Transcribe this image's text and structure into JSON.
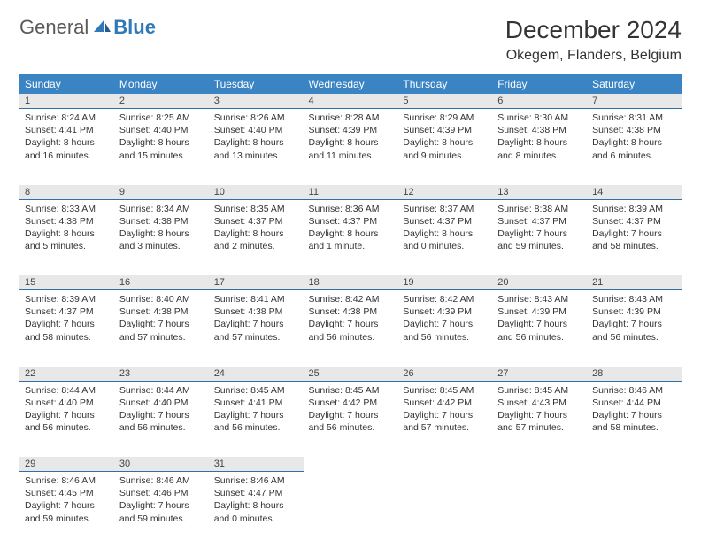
{
  "logo": {
    "general": "General",
    "blue": "Blue"
  },
  "title": "December 2024",
  "location": "Okegem, Flanders, Belgium",
  "day_headers": [
    "Sunday",
    "Monday",
    "Tuesday",
    "Wednesday",
    "Thursday",
    "Friday",
    "Saturday"
  ],
  "colors": {
    "header_bg": "#3b84c4",
    "header_text": "#ffffff",
    "daynum_bg": "#e8e8e8",
    "daynum_border": "#2f6fa8",
    "logo_gray": "#5a5a5a",
    "logo_blue": "#2f79b9"
  },
  "weeks": [
    [
      {
        "n": "1",
        "sunrise": "Sunrise: 8:24 AM",
        "sunset": "Sunset: 4:41 PM",
        "daylight": "Daylight: 8 hours and 16 minutes."
      },
      {
        "n": "2",
        "sunrise": "Sunrise: 8:25 AM",
        "sunset": "Sunset: 4:40 PM",
        "daylight": "Daylight: 8 hours and 15 minutes."
      },
      {
        "n": "3",
        "sunrise": "Sunrise: 8:26 AM",
        "sunset": "Sunset: 4:40 PM",
        "daylight": "Daylight: 8 hours and 13 minutes."
      },
      {
        "n": "4",
        "sunrise": "Sunrise: 8:28 AM",
        "sunset": "Sunset: 4:39 PM",
        "daylight": "Daylight: 8 hours and 11 minutes."
      },
      {
        "n": "5",
        "sunrise": "Sunrise: 8:29 AM",
        "sunset": "Sunset: 4:39 PM",
        "daylight": "Daylight: 8 hours and 9 minutes."
      },
      {
        "n": "6",
        "sunrise": "Sunrise: 8:30 AM",
        "sunset": "Sunset: 4:38 PM",
        "daylight": "Daylight: 8 hours and 8 minutes."
      },
      {
        "n": "7",
        "sunrise": "Sunrise: 8:31 AM",
        "sunset": "Sunset: 4:38 PM",
        "daylight": "Daylight: 8 hours and 6 minutes."
      }
    ],
    [
      {
        "n": "8",
        "sunrise": "Sunrise: 8:33 AM",
        "sunset": "Sunset: 4:38 PM",
        "daylight": "Daylight: 8 hours and 5 minutes."
      },
      {
        "n": "9",
        "sunrise": "Sunrise: 8:34 AM",
        "sunset": "Sunset: 4:38 PM",
        "daylight": "Daylight: 8 hours and 3 minutes."
      },
      {
        "n": "10",
        "sunrise": "Sunrise: 8:35 AM",
        "sunset": "Sunset: 4:37 PM",
        "daylight": "Daylight: 8 hours and 2 minutes."
      },
      {
        "n": "11",
        "sunrise": "Sunrise: 8:36 AM",
        "sunset": "Sunset: 4:37 PM",
        "daylight": "Daylight: 8 hours and 1 minute."
      },
      {
        "n": "12",
        "sunrise": "Sunrise: 8:37 AM",
        "sunset": "Sunset: 4:37 PM",
        "daylight": "Daylight: 8 hours and 0 minutes."
      },
      {
        "n": "13",
        "sunrise": "Sunrise: 8:38 AM",
        "sunset": "Sunset: 4:37 PM",
        "daylight": "Daylight: 7 hours and 59 minutes."
      },
      {
        "n": "14",
        "sunrise": "Sunrise: 8:39 AM",
        "sunset": "Sunset: 4:37 PM",
        "daylight": "Daylight: 7 hours and 58 minutes."
      }
    ],
    [
      {
        "n": "15",
        "sunrise": "Sunrise: 8:39 AM",
        "sunset": "Sunset: 4:37 PM",
        "daylight": "Daylight: 7 hours and 58 minutes."
      },
      {
        "n": "16",
        "sunrise": "Sunrise: 8:40 AM",
        "sunset": "Sunset: 4:38 PM",
        "daylight": "Daylight: 7 hours and 57 minutes."
      },
      {
        "n": "17",
        "sunrise": "Sunrise: 8:41 AM",
        "sunset": "Sunset: 4:38 PM",
        "daylight": "Daylight: 7 hours and 57 minutes."
      },
      {
        "n": "18",
        "sunrise": "Sunrise: 8:42 AM",
        "sunset": "Sunset: 4:38 PM",
        "daylight": "Daylight: 7 hours and 56 minutes."
      },
      {
        "n": "19",
        "sunrise": "Sunrise: 8:42 AM",
        "sunset": "Sunset: 4:39 PM",
        "daylight": "Daylight: 7 hours and 56 minutes."
      },
      {
        "n": "20",
        "sunrise": "Sunrise: 8:43 AM",
        "sunset": "Sunset: 4:39 PM",
        "daylight": "Daylight: 7 hours and 56 minutes."
      },
      {
        "n": "21",
        "sunrise": "Sunrise: 8:43 AM",
        "sunset": "Sunset: 4:39 PM",
        "daylight": "Daylight: 7 hours and 56 minutes."
      }
    ],
    [
      {
        "n": "22",
        "sunrise": "Sunrise: 8:44 AM",
        "sunset": "Sunset: 4:40 PM",
        "daylight": "Daylight: 7 hours and 56 minutes."
      },
      {
        "n": "23",
        "sunrise": "Sunrise: 8:44 AM",
        "sunset": "Sunset: 4:40 PM",
        "daylight": "Daylight: 7 hours and 56 minutes."
      },
      {
        "n": "24",
        "sunrise": "Sunrise: 8:45 AM",
        "sunset": "Sunset: 4:41 PM",
        "daylight": "Daylight: 7 hours and 56 minutes."
      },
      {
        "n": "25",
        "sunrise": "Sunrise: 8:45 AM",
        "sunset": "Sunset: 4:42 PM",
        "daylight": "Daylight: 7 hours and 56 minutes."
      },
      {
        "n": "26",
        "sunrise": "Sunrise: 8:45 AM",
        "sunset": "Sunset: 4:42 PM",
        "daylight": "Daylight: 7 hours and 57 minutes."
      },
      {
        "n": "27",
        "sunrise": "Sunrise: 8:45 AM",
        "sunset": "Sunset: 4:43 PM",
        "daylight": "Daylight: 7 hours and 57 minutes."
      },
      {
        "n": "28",
        "sunrise": "Sunrise: 8:46 AM",
        "sunset": "Sunset: 4:44 PM",
        "daylight": "Daylight: 7 hours and 58 minutes."
      }
    ],
    [
      {
        "n": "29",
        "sunrise": "Sunrise: 8:46 AM",
        "sunset": "Sunset: 4:45 PM",
        "daylight": "Daylight: 7 hours and 59 minutes."
      },
      {
        "n": "30",
        "sunrise": "Sunrise: 8:46 AM",
        "sunset": "Sunset: 4:46 PM",
        "daylight": "Daylight: 7 hours and 59 minutes."
      },
      {
        "n": "31",
        "sunrise": "Sunrise: 8:46 AM",
        "sunset": "Sunset: 4:47 PM",
        "daylight": "Daylight: 8 hours and 0 minutes."
      },
      null,
      null,
      null,
      null
    ]
  ]
}
